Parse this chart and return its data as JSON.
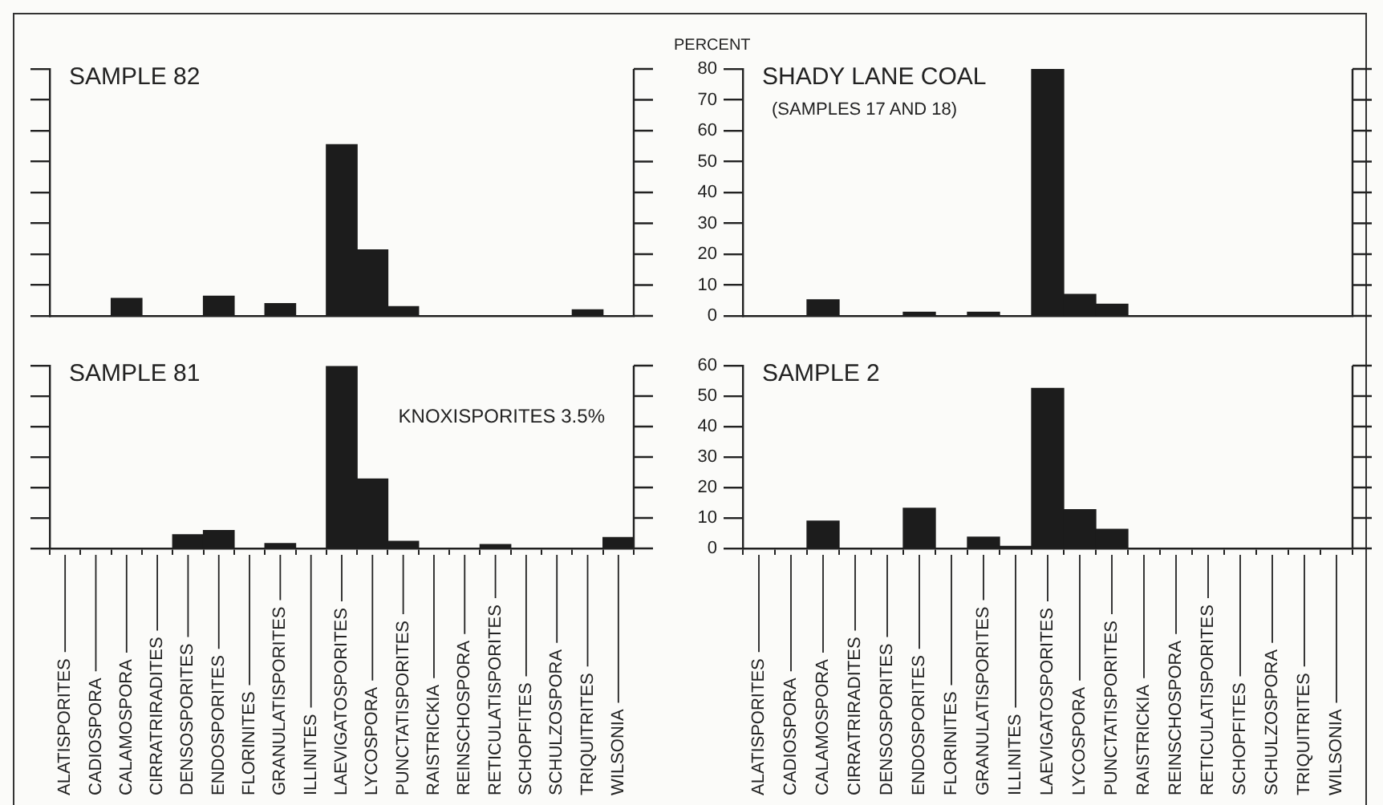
{
  "chart_data": [
    {
      "type": "bar",
      "title": "SAMPLE 82",
      "categories": [
        null,
        null,
        null,
        null,
        null,
        null,
        null,
        null,
        null,
        null,
        null,
        null,
        null,
        null,
        null,
        null,
        null,
        null,
        null
      ],
      "values": [
        0,
        0,
        5.7,
        0,
        0,
        6.4,
        0,
        4,
        0,
        55.5,
        21.4,
        3,
        0,
        0,
        0,
        0,
        0,
        2,
        0
      ],
      "color": "#1c1c1c",
      "ylim": [
        0,
        80
      ],
      "yticks": [
        0,
        10,
        20,
        30,
        40,
        50,
        60,
        70,
        80
      ],
      "tick_labels": false
    },
    {
      "type": "bar",
      "title": "SHADY LANE COAL",
      "subtitle": "(SAMPLES 17 AND 18)",
      "ylabel": "PERCENT",
      "categories": [
        null,
        null,
        null,
        null,
        null,
        null,
        null,
        null,
        null,
        null,
        null,
        null,
        null,
        null,
        null,
        null,
        null,
        null,
        null
      ],
      "values": [
        0,
        0,
        5.2,
        0,
        0,
        1.2,
        0,
        1.2,
        0,
        80,
        7,
        3.8,
        0,
        0,
        0,
        0,
        0,
        0,
        0
      ],
      "color": "#1c1c1c",
      "ylim": [
        0,
        80
      ],
      "yticks": [
        0,
        10,
        20,
        30,
        40,
        50,
        60,
        70,
        80
      ],
      "tick_labels": "y"
    },
    {
      "type": "bar",
      "title": "SAMPLE 81",
      "annotations": [
        "KNOXISPORITES 3.5%"
      ],
      "categories": [
        "ALATISPORITES",
        "CADIOSPORA",
        "CALAMOSPORA",
        "CIRRATRIRADITES",
        "DENSOSPORITES",
        "ENDOSPORITES",
        "FLORINITES",
        "GRANULATISPORITES",
        "ILLINITES",
        "LAEVIGATOSPORITES",
        "LYCOSPORA",
        "PUNCTATISPORITES",
        "RAISTRICKIA",
        "REINSCHOSPORA",
        "RETICULATISPORITES",
        "SCHOPFITES",
        "SCHULZOSPORA",
        "TRIQUITRITES",
        "WILSONIA"
      ],
      "values": [
        0,
        0,
        0,
        0,
        4.5,
        5.9,
        0,
        1.6,
        0,
        59.7,
        22.8,
        2.3,
        0,
        0,
        1.3,
        0,
        0,
        0,
        3.6
      ],
      "color": "#1c1c1c",
      "ylim": [
        0,
        60
      ],
      "yticks": [
        0,
        10,
        20,
        30,
        40,
        50,
        60
      ],
      "tick_labels": "x"
    },
    {
      "type": "bar",
      "title": "SAMPLE 2",
      "categories": [
        "ALATISPORITES",
        "CADIOSPORA",
        "CALAMOSPORA",
        "CIRRATRIRADITES",
        "DENSOSPORITES",
        "ENDOSPORITES",
        "FLORINITES",
        "GRANULATISPORITES",
        "ILLINITES",
        "LAEVIGATOSPORITES",
        "LYCOSPORA",
        "PUNCTATISPORITES",
        "RAISTRICKIA",
        "REINSCHOSPORA",
        "RETICULATISPORITES",
        "SCHOPFITES",
        "SCHULZOSPORA",
        "TRIQUITRITES",
        "WILSONIA"
      ],
      "values": [
        0,
        0,
        9,
        0,
        0,
        13.2,
        0,
        3.7,
        0.7,
        52.5,
        12.7,
        6.3,
        0,
        0,
        0,
        0,
        0,
        0,
        0
      ],
      "color": "#1c1c1c",
      "ylim": [
        0,
        60
      ],
      "yticks": [
        0,
        10,
        20,
        30,
        40,
        50,
        60
      ]
    }
  ]
}
